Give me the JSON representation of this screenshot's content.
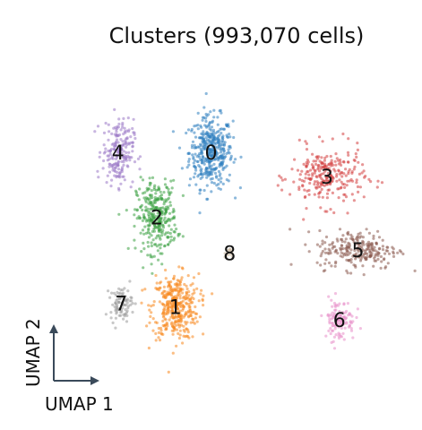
{
  "chart_data": {
    "type": "scatter",
    "title": "Clusters (993,070 cells)",
    "xlabel": "UMAP 1",
    "ylabel": "UMAP 2",
    "grid": false,
    "legend": "none",
    "point_size": "tiny",
    "clusters": [
      {
        "name": "0",
        "color": "#2f7fbf",
        "approx_center": [
          -1.0,
          6.5
        ],
        "spread": [
          1.4,
          2.2
        ],
        "points": 420
      },
      {
        "name": "1",
        "color": "#f7891f",
        "approx_center": [
          -3.3,
          -3.0
        ],
        "spread": [
          1.5,
          2.0
        ],
        "points": 380
      },
      {
        "name": "2",
        "color": "#3aa042",
        "approx_center": [
          -4.5,
          2.5
        ],
        "spread": [
          1.3,
          2.2
        ],
        "points": 320
      },
      {
        "name": "3",
        "color": "#d43f3f",
        "approx_center": [
          6.5,
          5.0
        ],
        "spread": [
          2.4,
          1.8
        ],
        "points": 260
      },
      {
        "name": "4",
        "color": "#9b79c6",
        "approx_center": [
          -7.0,
          6.5
        ],
        "spread": [
          1.0,
          2.0
        ],
        "points": 200
      },
      {
        "name": "5",
        "color": "#8a5a4e",
        "approx_center": [
          8.5,
          0.5
        ],
        "spread": [
          2.6,
          1.2
        ],
        "points": 240
      },
      {
        "name": "6",
        "color": "#e88ec8",
        "approx_center": [
          7.3,
          -3.8
        ],
        "spread": [
          1.0,
          1.3
        ],
        "points": 120
      },
      {
        "name": "7",
        "color": "#9a9a9a",
        "approx_center": [
          -6.8,
          -2.8
        ],
        "spread": [
          0.7,
          1.0
        ],
        "points": 90
      },
      {
        "name": "8",
        "color": "#c9b8a0",
        "approx_center": [
          0.2,
          0.3
        ],
        "spread": [
          0.3,
          0.3
        ],
        "points": 15
      }
    ],
    "axis_indicator": {
      "x_label": "UMAP 1",
      "y_label": "UMAP 2"
    }
  }
}
